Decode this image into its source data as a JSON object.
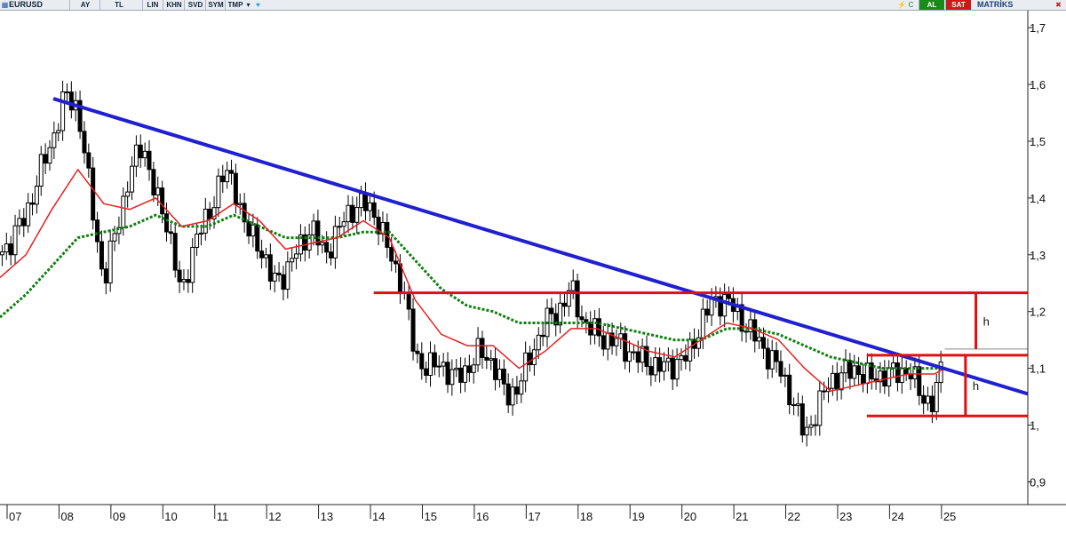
{
  "toolbar": {
    "symbol": "EURUSD",
    "period": "AY",
    "currency": "TL",
    "buttons": [
      "LIN",
      "KHN",
      "SVD",
      "SYM",
      "TMP"
    ],
    "buy_label": "AL",
    "sell_label": "SAT",
    "brand": "MATRİKS",
    "icons": [
      "chart-type-icon",
      "dropdown-arrow-icon",
      "twitter-icon",
      "lightning-icon",
      "refresh-icon",
      "close-icon"
    ]
  },
  "colors": {
    "trendline": "#2020d0",
    "levels": "#e01010",
    "ma_short": "#e82020",
    "ma_long": "#108010",
    "candle_up": "#ffffff",
    "candle_down": "#000000",
    "buy": "#1a8a1a",
    "sell": "#d01818"
  },
  "chart_data": {
    "type": "line",
    "title": "",
    "symbol": "EURUSD",
    "chart_style": "candlestick",
    "x_tick_labels": [
      "07",
      "08",
      "09",
      "10",
      "11",
      "12",
      "13",
      "14",
      "15",
      "16",
      "17",
      "18",
      "19",
      "20",
      "21",
      "22",
      "23",
      "24",
      "25"
    ],
    "y_tick_labels": [
      "1,7",
      "1,6",
      "1,5",
      "1,4",
      "1,3",
      "1,2",
      "1,1",
      "1,",
      "0,9"
    ],
    "ylim": [
      0.86,
      1.73
    ],
    "xlim": [
      2007.0,
      2026.8
    ],
    "grid": false,
    "y_axis_side": "right",
    "series": [
      {
        "name": "",
        "kind": "close",
        "x": [
          2007.0,
          2007.25,
          2007.5,
          2007.75,
          2008.0,
          2008.25,
          2008.5,
          2008.75,
          2009.0,
          2009.25,
          2009.5,
          2009.75,
          2010.0,
          2010.25,
          2010.5,
          2010.75,
          2011.0,
          2011.25,
          2011.5,
          2011.75,
          2012.0,
          2012.25,
          2012.5,
          2012.75,
          2013.0,
          2013.25,
          2013.5,
          2013.75,
          2014.0,
          2014.25,
          2014.5,
          2014.75,
          2015.0,
          2015.25,
          2015.5,
          2015.75,
          2016.0,
          2016.25,
          2016.5,
          2016.75,
          2017.0,
          2017.25,
          2017.5,
          2017.75,
          2018.0,
          2018.25,
          2018.5,
          2018.75,
          2019.0,
          2019.25,
          2019.5,
          2019.75,
          2020.0,
          2020.25,
          2020.5,
          2020.75,
          2021.0,
          2021.25,
          2021.5,
          2021.75,
          2022.0,
          2022.25,
          2022.5,
          2022.75,
          2023.0,
          2023.25,
          2023.5,
          2023.75,
          2024.0,
          2024.25,
          2024.5,
          2024.75,
          2025.0,
          2025.2
        ],
        "y": [
          1.3,
          1.33,
          1.37,
          1.44,
          1.5,
          1.58,
          1.56,
          1.4,
          1.25,
          1.35,
          1.44,
          1.5,
          1.4,
          1.35,
          1.22,
          1.33,
          1.36,
          1.44,
          1.43,
          1.34,
          1.32,
          1.25,
          1.27,
          1.31,
          1.35,
          1.3,
          1.34,
          1.38,
          1.39,
          1.37,
          1.3,
          1.25,
          1.12,
          1.1,
          1.11,
          1.08,
          1.1,
          1.13,
          1.11,
          1.05,
          1.07,
          1.13,
          1.18,
          1.2,
          1.24,
          1.18,
          1.16,
          1.15,
          1.14,
          1.12,
          1.11,
          1.1,
          1.11,
          1.12,
          1.18,
          1.22,
          1.22,
          1.19,
          1.16,
          1.13,
          1.1,
          1.05,
          0.98,
          1.03,
          1.08,
          1.09,
          1.1,
          1.08,
          1.09,
          1.09,
          1.1,
          1.05,
          1.04,
          1.13
        ]
      },
      {
        "name": "",
        "kind": "moving-average-short",
        "x": [
          2007.0,
          2007.5,
          2008.0,
          2008.5,
          2009.0,
          2009.5,
          2010.0,
          2010.5,
          2011.0,
          2011.5,
          2012.0,
          2012.5,
          2013.0,
          2013.5,
          2014.0,
          2014.5,
          2015.0,
          2015.5,
          2016.0,
          2016.5,
          2017.0,
          2017.5,
          2018.0,
          2018.5,
          2019.0,
          2019.5,
          2020.0,
          2020.5,
          2021.0,
          2021.5,
          2022.0,
          2022.5,
          2023.0,
          2023.5,
          2024.0,
          2024.5,
          2025.0,
          2025.2
        ],
        "y": [
          1.26,
          1.3,
          1.38,
          1.45,
          1.39,
          1.38,
          1.4,
          1.35,
          1.36,
          1.39,
          1.36,
          1.31,
          1.32,
          1.33,
          1.36,
          1.33,
          1.22,
          1.16,
          1.14,
          1.14,
          1.1,
          1.13,
          1.17,
          1.17,
          1.15,
          1.13,
          1.12,
          1.15,
          1.18,
          1.17,
          1.15,
          1.1,
          1.06,
          1.07,
          1.08,
          1.09,
          1.09,
          1.1
        ]
      },
      {
        "name": "",
        "kind": "moving-average-long",
        "x": [
          2007.0,
          2007.5,
          2008.0,
          2008.5,
          2009.0,
          2009.5,
          2010.0,
          2010.5,
          2011.0,
          2011.5,
          2012.0,
          2012.5,
          2013.0,
          2013.5,
          2014.0,
          2014.5,
          2015.0,
          2015.5,
          2016.0,
          2016.5,
          2017.0,
          2017.5,
          2018.0,
          2018.5,
          2019.0,
          2019.5,
          2020.0,
          2020.5,
          2021.0,
          2021.5,
          2022.0,
          2022.5,
          2023.0,
          2023.5,
          2024.0,
          2024.5,
          2025.0,
          2025.2
        ],
        "y": [
          1.19,
          1.23,
          1.28,
          1.33,
          1.34,
          1.35,
          1.37,
          1.35,
          1.35,
          1.37,
          1.35,
          1.33,
          1.33,
          1.33,
          1.34,
          1.34,
          1.29,
          1.24,
          1.21,
          1.2,
          1.18,
          1.18,
          1.18,
          1.18,
          1.17,
          1.16,
          1.15,
          1.15,
          1.17,
          1.17,
          1.16,
          1.14,
          1.12,
          1.11,
          1.1,
          1.1,
          1.1,
          1.1
        ]
      }
    ],
    "annotations": {
      "trendline": {
        "from": [
          2007.0,
          1.575
        ],
        "to": [
          2026.8,
          1.055
        ]
      },
      "resistance": {
        "x": [
          2014.2,
          2026.8
        ],
        "y": 1.233
      },
      "range_top": {
        "x": [
          2023.7,
          2026.8
        ],
        "y": 1.123
      },
      "range_bottom": {
        "x": [
          2023.7,
          2026.8
        ],
        "y": 1.016
      },
      "thin_line": {
        "x": [
          2025.2,
          2026.8
        ],
        "y": 1.134
      },
      "height_markers": [
        {
          "label": "h",
          "x": 2025.8,
          "y_from": 1.134,
          "y_to": 1.233
        },
        {
          "label": "h",
          "x": 2025.6,
          "y_from": 1.016,
          "y_to": 1.123
        }
      ]
    }
  }
}
